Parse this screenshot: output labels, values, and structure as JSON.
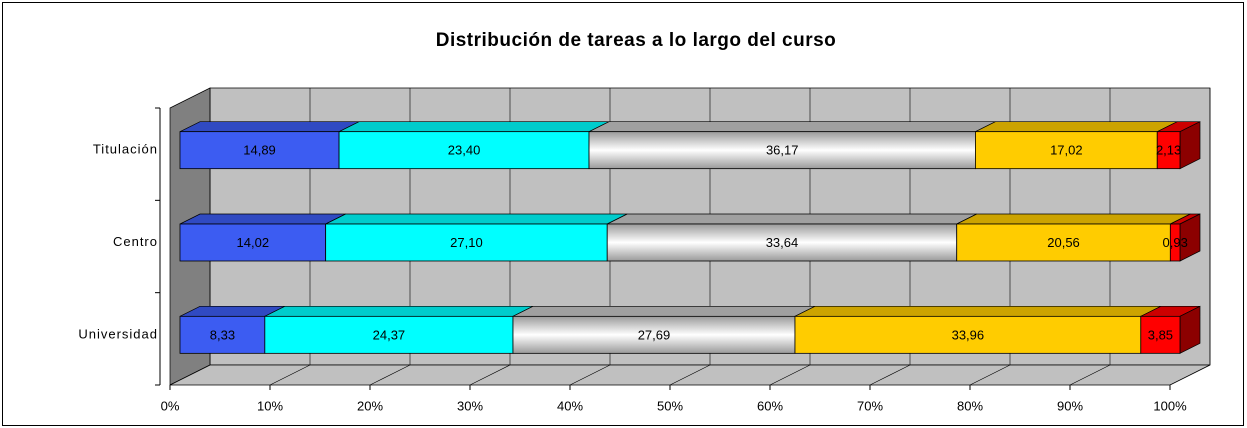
{
  "chart_data": {
    "type": "bar",
    "orientation": "horizontal",
    "stack": "percent",
    "title": "Distribución de tareas a lo largo del curso",
    "categories": [
      "Universidad",
      "Centro",
      "Titulación"
    ],
    "series": [
      {
        "color": "#3c5cf2",
        "values": [
          8.33,
          14.02,
          14.89
        ],
        "value_labels": [
          "8,33",
          "14,02",
          "14,89"
        ]
      },
      {
        "color": "#00ffff",
        "values": [
          24.37,
          27.1,
          23.4
        ],
        "value_labels": [
          "24,37",
          "27,10",
          "23,40"
        ]
      },
      {
        "color": "#c8c8c8",
        "values": [
          27.69,
          33.64,
          36.17
        ],
        "value_labels": [
          "27,69",
          "33,64",
          "36,17"
        ]
      },
      {
        "color": "#ffcc00",
        "values": [
          33.96,
          20.56,
          17.02
        ],
        "value_labels": [
          "33,96",
          "20,56",
          "17,02"
        ]
      },
      {
        "color": "#ff0000",
        "values": [
          3.85,
          0.93,
          2.13
        ],
        "value_labels": [
          "3,85",
          "0,93",
          "2,13"
        ]
      }
    ],
    "xlim": [
      0,
      100
    ],
    "xticks": [
      {
        "value": 0,
        "label": "0%"
      },
      {
        "value": 10,
        "label": "10%"
      },
      {
        "value": 20,
        "label": "20%"
      },
      {
        "value": 30,
        "label": "30%"
      },
      {
        "value": 40,
        "label": "40%"
      },
      {
        "value": 50,
        "label": "50%"
      },
      {
        "value": 60,
        "label": "60%"
      },
      {
        "value": 70,
        "label": "70%"
      },
      {
        "value": 80,
        "label": "80%"
      },
      {
        "value": 90,
        "label": "90%"
      },
      {
        "value": 100,
        "label": "100%"
      }
    ],
    "grid": true
  }
}
